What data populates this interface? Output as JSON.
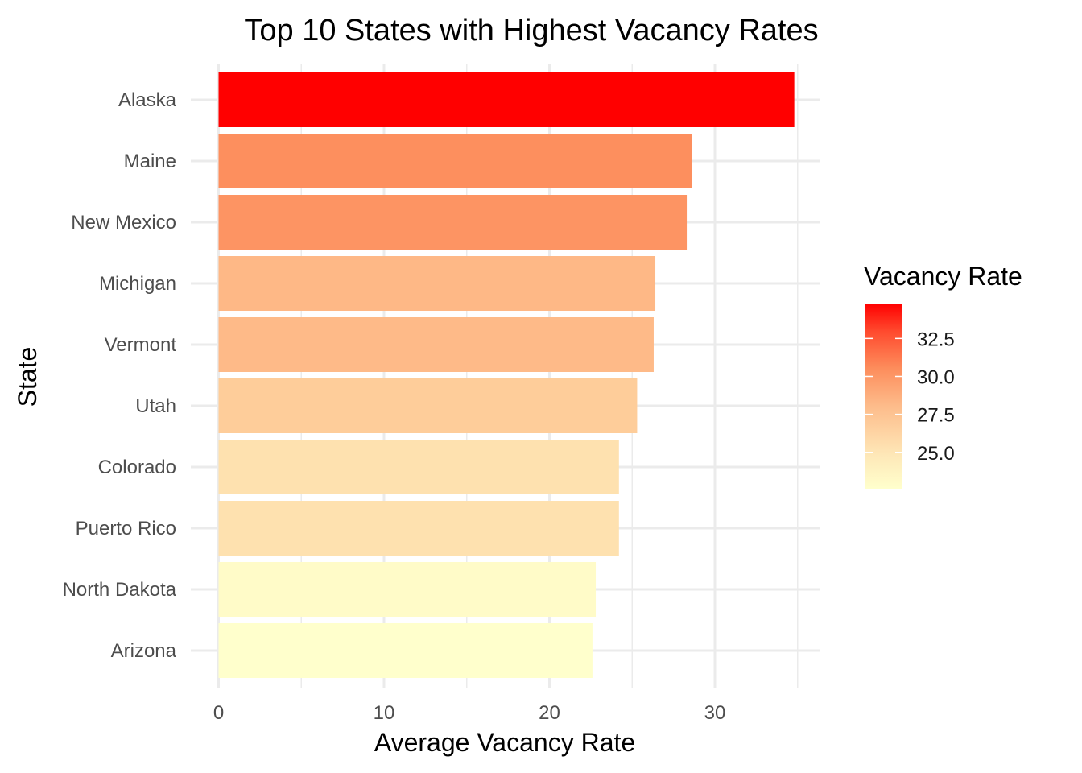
{
  "chart_data": {
    "type": "bar",
    "orientation": "horizontal",
    "title": "Top 10 States with Highest Vacancy Rates",
    "xlabel": "Average Vacancy Rate",
    "ylabel": "State",
    "categories": [
      "Alaska",
      "Maine",
      "New Mexico",
      "Michigan",
      "Vermont",
      "Utah",
      "Colorado",
      "Puerto Rico",
      "North Dakota",
      "Arizona"
    ],
    "values": [
      34.8,
      28.6,
      28.3,
      26.4,
      26.3,
      25.3,
      24.2,
      24.2,
      22.8,
      22.6
    ],
    "xlim": [
      0,
      36.5
    ],
    "xticks": [
      0,
      10,
      20,
      30
    ],
    "xtick_labels": [
      "0",
      "10",
      "20",
      "30"
    ],
    "grid": true,
    "legend": {
      "title": "Vacancy Rate",
      "placement": "right",
      "type": "colorbar",
      "range": [
        22.6,
        34.8
      ],
      "ticks": [
        25.0,
        27.5,
        30.0,
        32.5
      ],
      "tick_labels": [
        "25.0",
        "27.5",
        "30.0",
        "32.5"
      ],
      "low_color": "#ffffcc",
      "mid_color": "#fd8d5c",
      "high_color": "#ff0000"
    }
  }
}
